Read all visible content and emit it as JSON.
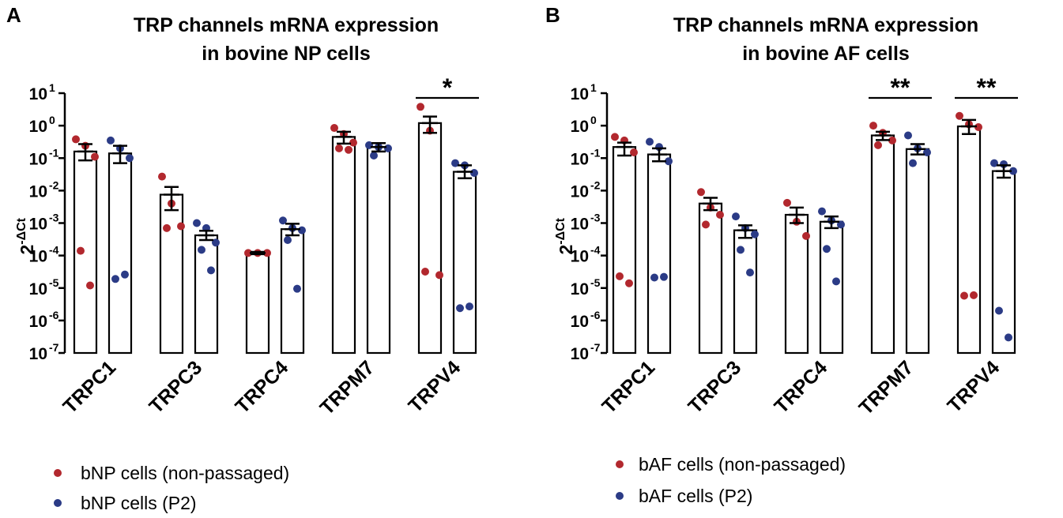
{
  "chart_data": [
    {
      "type": "bar",
      "panel": "A",
      "title": [
        "TRP channels mRNA expression",
        "in bovine NP cells"
      ],
      "ylabel": "2-ΔCt",
      "yscale": "log",
      "ylim": [
        1e-07,
        10
      ],
      "yticks": [
        "-7",
        "-6",
        "-5",
        "-4",
        "-3",
        "-2",
        "-1",
        "0",
        "1"
      ],
      "ytick_base": "10",
      "categories": [
        "TRPC1",
        "TRPC3",
        "TRPC4",
        "TRPM7",
        "TRPV4"
      ],
      "series": [
        {
          "name": "bNP cells (non-passaged)",
          "color": "#b2282e",
          "means": [
            0.16,
            0.0075,
            0.00012,
            0.45,
            1.2
          ],
          "sem_high": [
            0.27,
            0.013,
            0.00013,
            0.65,
            1.9
          ],
          "sem_low": [
            0.085,
            0.0025,
            0.00011,
            0.28,
            0.6
          ],
          "points": [
            [
              0.38,
              0.24,
              0.11,
              0.00014,
              1.2e-05
            ],
            [
              0.027,
              0.004,
              0.0008,
              0.0007
            ],
            [
              0.00012,
              0.00012,
              0.00012
            ],
            [
              0.85,
              0.55,
              0.3,
              0.2,
              0.18
            ],
            [
              3.8,
              0.7,
              2.5e-05,
              3.2e-05
            ]
          ]
        },
        {
          "name": "bNP cells (P2)",
          "color": "#2b3b86",
          "means": [
            0.14,
            0.00042,
            0.00065,
            0.22,
            0.038
          ],
          "sem_high": [
            0.24,
            0.00058,
            0.00095,
            0.29,
            0.06
          ],
          "sem_low": [
            0.07,
            0.0003,
            0.00042,
            0.16,
            0.024
          ],
          "points": [
            [
              0.35,
              0.2,
              0.1,
              1.9e-05,
              2.6e-05
            ],
            [
              0.001,
              0.0007,
              0.00025,
              0.00015,
              3.5e-05
            ],
            [
              0.0012,
              0.0007,
              0.0006,
              0.0003,
              9.5e-06
            ],
            [
              0.25,
              0.22,
              0.2,
              0.12
            ],
            [
              0.07,
              0.06,
              0.035,
              2.4e-06,
              2.7e-06
            ]
          ]
        }
      ],
      "significance": [
        {
          "category": "TRPV4",
          "label": "*"
        }
      ]
    },
    {
      "type": "bar",
      "panel": "B",
      "title": [
        "TRP channels mRNA expression",
        "in bovine AF cells"
      ],
      "ylabel": "2-ΔCt",
      "yscale": "log",
      "ylim": [
        1e-07,
        10
      ],
      "yticks": [
        "-7",
        "-6",
        "-5",
        "-4",
        "-3",
        "-2",
        "-1",
        "0",
        "1"
      ],
      "ytick_base": "10",
      "categories": [
        "TRPC1",
        "TRPC3",
        "TRPC4",
        "TRPM7",
        "TRPV4"
      ],
      "series": [
        {
          "name": "bAF cells (non-passaged)",
          "color": "#b2282e",
          "means": [
            0.22,
            0.004,
            0.0018,
            0.5,
            0.95
          ],
          "sem_high": [
            0.3,
            0.006,
            0.003,
            0.65,
            1.5
          ],
          "sem_low": [
            0.12,
            0.0025,
            0.001,
            0.36,
            0.55
          ],
          "points": [
            [
              0.45,
              0.35,
              0.15,
              2.3e-05,
              1.4e-05
            ],
            [
              0.009,
              0.003,
              0.0018,
              0.0009
            ],
            [
              0.0042,
              0.0011,
              0.0004
            ],
            [
              1.0,
              0.6,
              0.35,
              0.25
            ],
            [
              2.0,
              1.1,
              0.9,
              5.8e-06,
              6e-06
            ]
          ]
        },
        {
          "name": "bAF cells (P2)",
          "color": "#2b3b86",
          "means": [
            0.13,
            0.0006,
            0.0011,
            0.19,
            0.04
          ],
          "sem_high": [
            0.2,
            0.00085,
            0.0016,
            0.27,
            0.06
          ],
          "sem_low": [
            0.08,
            0.00035,
            0.0007,
            0.13,
            0.025
          ],
          "points": [
            [
              0.32,
              0.22,
              0.08,
              2.1e-05,
              2.2e-05
            ],
            [
              0.0016,
              0.0007,
              0.00045,
              0.00015,
              3e-05
            ],
            [
              0.0023,
              0.0012,
              0.0009,
              0.00016,
              1.6e-05
            ],
            [
              0.5,
              0.2,
              0.15,
              0.07
            ],
            [
              0.07,
              0.065,
              0.04,
              2e-06,
              3e-07
            ]
          ]
        }
      ],
      "significance": [
        {
          "category": "TRPM7",
          "label": "**"
        },
        {
          "category": "TRPV4",
          "label": "**"
        }
      ]
    }
  ]
}
